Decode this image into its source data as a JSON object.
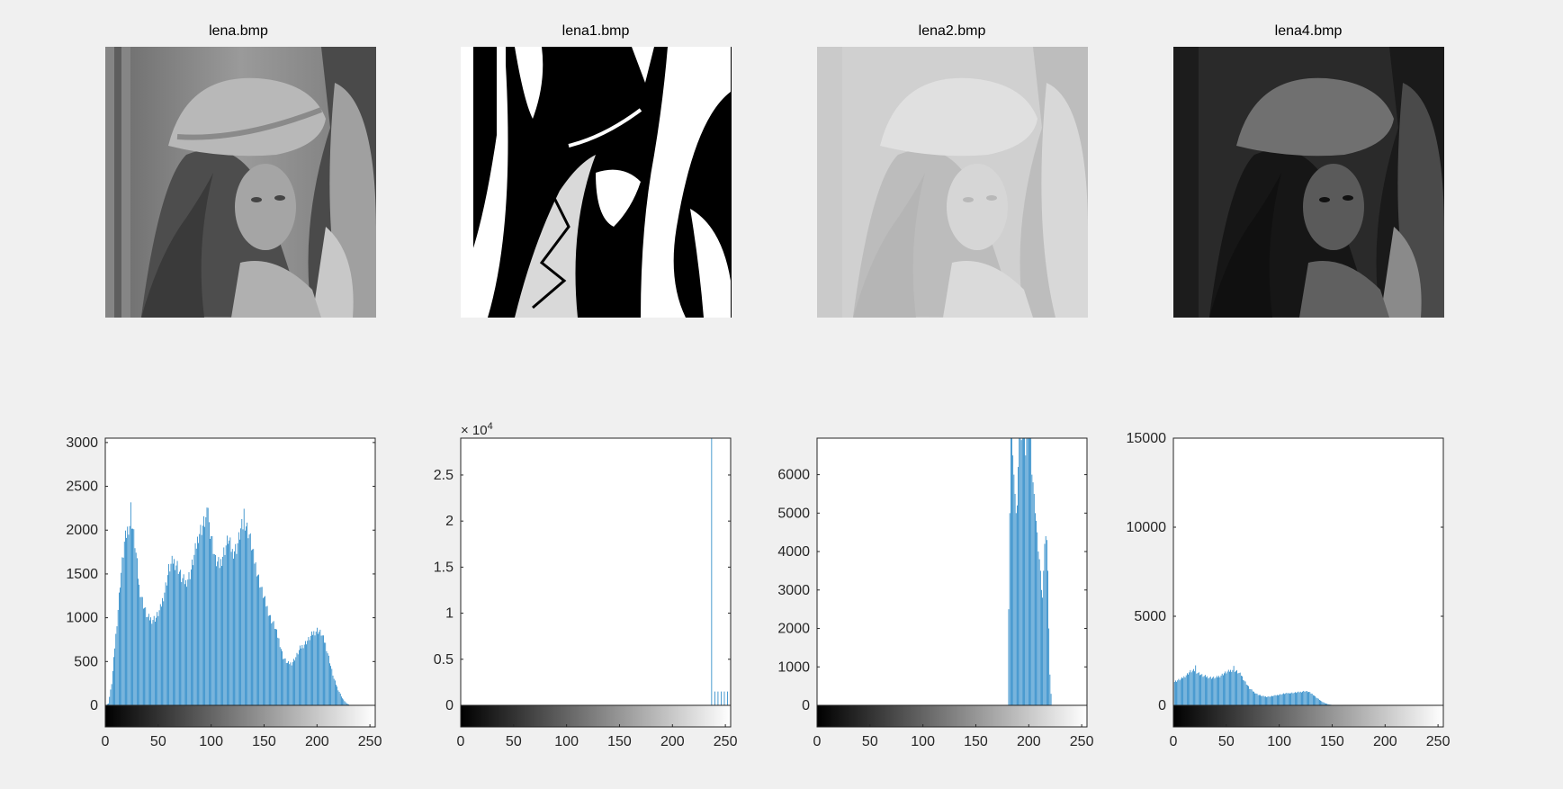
{
  "figure": {
    "titles": [
      "lena.bmp",
      "lena1.bmp",
      "lena2.bmp",
      "lena4.bmp"
    ]
  },
  "images": [
    {
      "name": "lena.bmp",
      "tone": "original grayscale portrait"
    },
    {
      "name": "lena1.bmp",
      "tone": "binary black and white"
    },
    {
      "name": "lena2.bmp",
      "tone": "brightened low contrast"
    },
    {
      "name": "lena4.bmp",
      "tone": "darkened"
    }
  ],
  "colors": {
    "bar": "#0072BD",
    "background": "#f0f0f0",
    "axes": "#ffffff"
  },
  "chart_data": [
    {
      "type": "bar",
      "title": "",
      "xlim": [
        0,
        255
      ],
      "ylim": [
        0,
        3050
      ],
      "xticks": [
        0,
        50,
        100,
        150,
        200,
        250
      ],
      "yticks": [
        0,
        500,
        1000,
        1500,
        2000,
        2500,
        3000
      ],
      "ytick_labels": [
        "0",
        "500",
        "1000",
        "1500",
        "2000",
        "2500",
        "3000"
      ],
      "exponent_label": "",
      "colorbar": "grayscale 0-255",
      "profile": [
        [
          0,
          0
        ],
        [
          3,
          20
        ],
        [
          6,
          250
        ],
        [
          10,
          800
        ],
        [
          14,
          1400
        ],
        [
          18,
          1850
        ],
        [
          22,
          2050
        ],
        [
          25,
          2100
        ],
        [
          28,
          1850
        ],
        [
          32,
          1350
        ],
        [
          36,
          1150
        ],
        [
          40,
          1000
        ],
        [
          44,
          980
        ],
        [
          48,
          1000
        ],
        [
          52,
          1100
        ],
        [
          56,
          1300
        ],
        [
          60,
          1550
        ],
        [
          64,
          1650
        ],
        [
          68,
          1600
        ],
        [
          72,
          1450
        ],
        [
          76,
          1400
        ],
        [
          80,
          1500
        ],
        [
          84,
          1700
        ],
        [
          88,
          1950
        ],
        [
          92,
          2050
        ],
        [
          96,
          2150
        ],
        [
          100,
          1950
        ],
        [
          104,
          1650
        ],
        [
          108,
          1600
        ],
        [
          112,
          1750
        ],
        [
          116,
          1900
        ],
        [
          120,
          1750
        ],
        [
          124,
          1800
        ],
        [
          128,
          2000
        ],
        [
          132,
          2100
        ],
        [
          136,
          1950
        ],
        [
          140,
          1700
        ],
        [
          144,
          1500
        ],
        [
          148,
          1300
        ],
        [
          152,
          1150
        ],
        [
          156,
          1000
        ],
        [
          160,
          900
        ],
        [
          164,
          750
        ],
        [
          168,
          550
        ],
        [
          172,
          480
        ],
        [
          176,
          480
        ],
        [
          180,
          550
        ],
        [
          184,
          650
        ],
        [
          188,
          700
        ],
        [
          192,
          750
        ],
        [
          196,
          820
        ],
        [
          200,
          860
        ],
        [
          204,
          820
        ],
        [
          208,
          700
        ],
        [
          212,
          500
        ],
        [
          216,
          300
        ],
        [
          220,
          180
        ],
        [
          224,
          80
        ],
        [
          228,
          20
        ],
        [
          232,
          0
        ],
        [
          255,
          0
        ]
      ],
      "spikes": [
        [
          24,
          2250
        ],
        [
          97,
          2300
        ],
        [
          131,
          2200
        ]
      ]
    },
    {
      "type": "bar",
      "title": "",
      "xlim": [
        0,
        255
      ],
      "ylim": [
        0,
        2.9
      ],
      "xticks": [
        0,
        50,
        100,
        150,
        200,
        250
      ],
      "yticks": [
        0,
        0.5,
        1,
        1.5,
        2,
        2.5
      ],
      "ytick_labels": [
        "0",
        "0.5",
        "1",
        "1.5",
        "2",
        "2.5"
      ],
      "exponent_label": "× 10",
      "exponent_power": "4",
      "colorbar": "grayscale 0-255",
      "profile": [],
      "spikes": [
        [
          0,
          2.9
        ],
        [
          237,
          2.9
        ],
        [
          240,
          0.15
        ],
        [
          243,
          0.15
        ],
        [
          246,
          0.15
        ],
        [
          249,
          0.15
        ],
        [
          252,
          0.15
        ],
        [
          255,
          0.15
        ]
      ]
    },
    {
      "type": "bar",
      "title": "",
      "xlim": [
        0,
        255
      ],
      "ylim": [
        0,
        6950
      ],
      "xticks": [
        0,
        50,
        100,
        150,
        200,
        250
      ],
      "yticks": [
        0,
        1000,
        2000,
        3000,
        4000,
        5000,
        6000
      ],
      "ytick_labels": [
        "0",
        "1000",
        "2000",
        "3000",
        "4000",
        "5000",
        "6000"
      ],
      "exponent_label": "",
      "colorbar": "grayscale 0-255",
      "profile": [],
      "spikes": [
        [
          181,
          2500
        ],
        [
          182,
          5000
        ],
        [
          183,
          6950
        ],
        [
          184,
          6950
        ],
        [
          185,
          6500
        ],
        [
          186,
          6000
        ],
        [
          187,
          5500
        ],
        [
          188,
          5000
        ],
        [
          189,
          5200
        ],
        [
          190,
          6200
        ],
        [
          191,
          6950
        ],
        [
          192,
          6950
        ],
        [
          193,
          6900
        ],
        [
          194,
          6950
        ],
        [
          195,
          6950
        ],
        [
          196,
          6950
        ],
        [
          197,
          6500
        ],
        [
          198,
          6950
        ],
        [
          199,
          6950
        ],
        [
          200,
          6950
        ],
        [
          201,
          6950
        ],
        [
          202,
          6950
        ],
        [
          203,
          6000
        ],
        [
          204,
          5800
        ],
        [
          205,
          5500
        ],
        [
          206,
          5000
        ],
        [
          207,
          4800
        ],
        [
          208,
          4500
        ],
        [
          209,
          4000
        ],
        [
          210,
          3800
        ],
        [
          211,
          3500
        ],
        [
          212,
          3000
        ],
        [
          213,
          2800
        ],
        [
          214,
          3500
        ],
        [
          215,
          4200
        ],
        [
          216,
          4400
        ],
        [
          217,
          4300
        ],
        [
          218,
          3500
        ],
        [
          219,
          2000
        ],
        [
          220,
          800
        ],
        [
          221,
          300
        ]
      ]
    },
    {
      "type": "bar",
      "title": "",
      "xlim": [
        0,
        255
      ],
      "ylim": [
        0,
        15000
      ],
      "xticks": [
        0,
        50,
        100,
        150,
        200,
        250
      ],
      "yticks": [
        0,
        5000,
        10000,
        15000
      ],
      "ytick_labels": [
        "0",
        "5000",
        "10000",
        "15000"
      ],
      "exponent_label": "",
      "colorbar": "grayscale 0-255",
      "profile": [
        [
          0,
          1300
        ],
        [
          4,
          1400
        ],
        [
          8,
          1500
        ],
        [
          12,
          1700
        ],
        [
          16,
          1900
        ],
        [
          20,
          1950
        ],
        [
          24,
          1800
        ],
        [
          28,
          1650
        ],
        [
          32,
          1600
        ],
        [
          36,
          1550
        ],
        [
          40,
          1550
        ],
        [
          44,
          1650
        ],
        [
          48,
          1800
        ],
        [
          52,
          1900
        ],
        [
          56,
          2000
        ],
        [
          60,
          1900
        ],
        [
          64,
          1700
        ],
        [
          68,
          1300
        ],
        [
          72,
          950
        ],
        [
          76,
          750
        ],
        [
          80,
          600
        ],
        [
          84,
          520
        ],
        [
          88,
          480
        ],
        [
          92,
          500
        ],
        [
          96,
          550
        ],
        [
          100,
          600
        ],
        [
          104,
          650
        ],
        [
          108,
          680
        ],
        [
          112,
          700
        ],
        [
          116,
          720
        ],
        [
          120,
          750
        ],
        [
          124,
          800
        ],
        [
          128,
          750
        ],
        [
          132,
          600
        ],
        [
          136,
          400
        ],
        [
          140,
          220
        ],
        [
          144,
          100
        ],
        [
          148,
          40
        ],
        [
          152,
          10
        ],
        [
          156,
          0
        ],
        [
          255,
          0
        ]
      ],
      "spikes": [
        [
          0,
          15000
        ],
        [
          21,
          2200
        ],
        [
          57,
          2150
        ]
      ]
    }
  ]
}
